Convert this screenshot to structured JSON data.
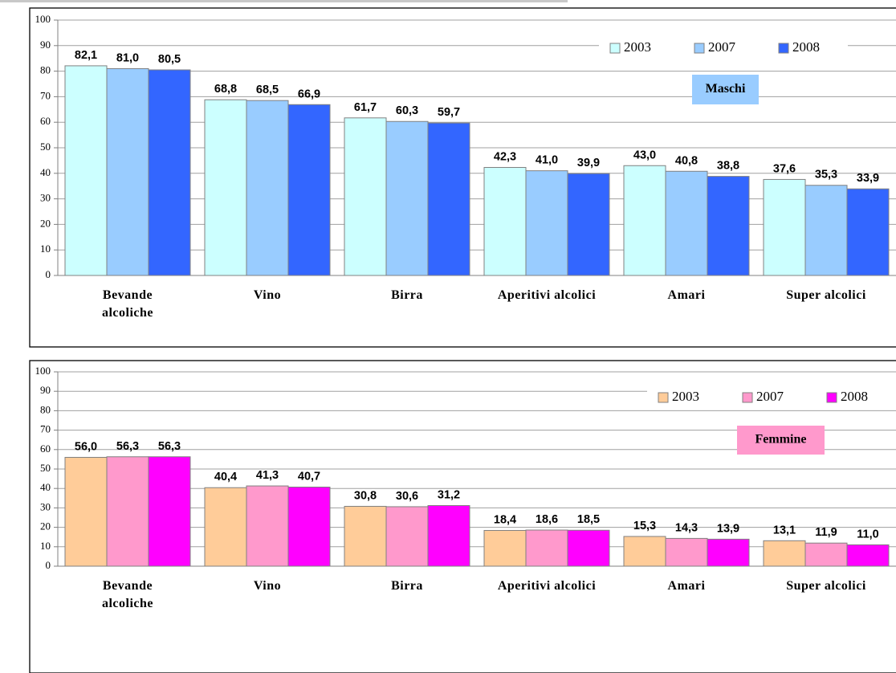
{
  "chart_data": [
    {
      "type": "bar",
      "categories": [
        "Bevande alcoliche",
        "Vino",
        "Birra",
        "Aperitivi alcolici",
        "Amari",
        "Super alcolici"
      ],
      "series": [
        {
          "name": "2003",
          "color": "#ccffff",
          "values": [
            82.1,
            68.8,
            61.7,
            42.3,
            43.0,
            37.6
          ],
          "value_labels": [
            "82,1",
            "68,8",
            "61,7",
            "42,3",
            "43,0",
            "37,6"
          ]
        },
        {
          "name": "2007",
          "color": "#99ccff",
          "values": [
            81.0,
            68.5,
            60.3,
            41.0,
            40.8,
            35.3
          ],
          "value_labels": [
            "81,0",
            "68,5",
            "60,3",
            "41,0",
            "40,8",
            "35,3"
          ]
        },
        {
          "name": "2008",
          "color": "#3366ff",
          "values": [
            80.5,
            66.9,
            59.7,
            39.9,
            38.8,
            33.9
          ],
          "value_labels": [
            "80,5",
            "66,9",
            "59,7",
            "39,9",
            "38,8",
            "33,9"
          ]
        }
      ],
      "annotation": "Maschi",
      "annotation_color": "#99ccff",
      "ylim": [
        0,
        100
      ],
      "yticks": [
        0,
        10,
        20,
        30,
        40,
        50,
        60,
        70,
        80,
        90,
        100
      ],
      "grid": true,
      "legend": "top-right"
    },
    {
      "type": "bar",
      "categories": [
        "Bevande alcoliche",
        "Vino",
        "Birra",
        "Aperitivi alcolici",
        "Amari",
        "Super alcolici"
      ],
      "series": [
        {
          "name": "2003",
          "color": "#ffcc99",
          "values": [
            56.0,
            40.4,
            30.8,
            18.4,
            15.3,
            13.1
          ],
          "value_labels": [
            "56,0",
            "40,4",
            "30,8",
            "18,4",
            "15,3",
            "13,1"
          ]
        },
        {
          "name": "2007",
          "color": "#ff99cc",
          "values": [
            56.3,
            41.3,
            30.6,
            18.6,
            14.3,
            11.9
          ],
          "value_labels": [
            "56,3",
            "41,3",
            "30,6",
            "18,6",
            "14,3",
            "11,9"
          ]
        },
        {
          "name": "2008",
          "color": "#ff00ff",
          "values": [
            56.3,
            40.7,
            31.2,
            18.5,
            13.9,
            11.0
          ],
          "value_labels": [
            "56,3",
            "40,7",
            "31,2",
            "18,5",
            "13,9",
            "11,0"
          ]
        }
      ],
      "annotation": "Femmine",
      "annotation_color": "#ff99cc",
      "ylim": [
        0,
        100
      ],
      "yticks": [
        0,
        10,
        20,
        30,
        40,
        50,
        60,
        70,
        80,
        90,
        100
      ],
      "grid": true,
      "legend": "top-right"
    }
  ]
}
